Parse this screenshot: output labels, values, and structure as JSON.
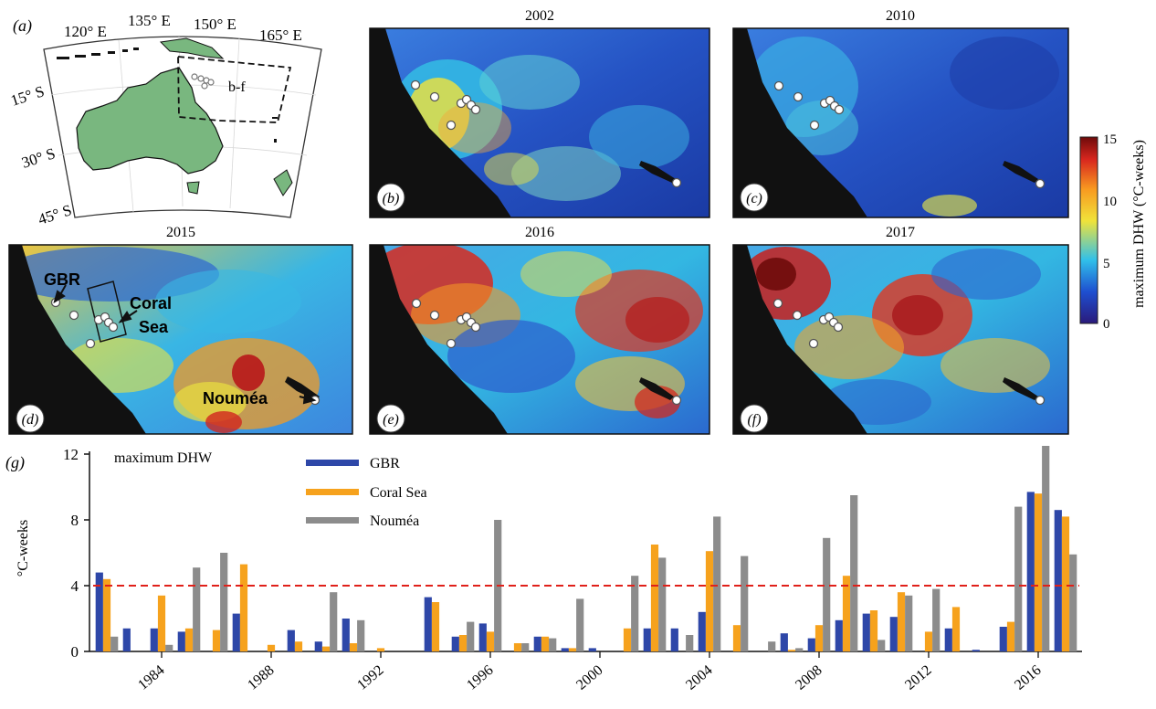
{
  "figure": {
    "panel_a": {
      "label": "(a)",
      "lon_ticks": [
        "120° E",
        "135° E",
        "150° E",
        "165° E"
      ],
      "lat_ticks": [
        "15° S",
        "30° S",
        "45° S"
      ],
      "region_label": "b-f"
    },
    "maps": [
      {
        "year": "2002",
        "label": "(b)"
      },
      {
        "year": "2010",
        "label": "(c)"
      },
      {
        "year": "2015",
        "label": "(d)"
      },
      {
        "year": "2016",
        "label": "(e)"
      },
      {
        "year": "2017",
        "label": "(f)"
      }
    ],
    "annotations": {
      "gbr": "GBR",
      "coral_sea_1": "Coral",
      "coral_sea_2": "Sea",
      "noumea": "Nouméa"
    },
    "colorbar": {
      "title": "maximum DHW (°C-weeks)",
      "ticks": [
        "15",
        "10",
        "5",
        "0"
      ],
      "colors": [
        "#2a1a7a",
        "#1e4fd0",
        "#31c0ea",
        "#f0e33a",
        "#f89a20",
        "#d8261e",
        "#6e0b0b"
      ]
    },
    "colors": {
      "land": "#111111",
      "gbr": "#2e47a8",
      "coral_sea": "#f6a21d",
      "noumea": "#8c8c8c",
      "threshold": "#e0201a"
    }
  },
  "chart_data": {
    "type": "bar",
    "panel_label": "(g)",
    "title": "maximum DHW",
    "xlabel": "",
    "ylabel": "°C-weeks",
    "ylim": [
      0,
      12
    ],
    "yticks": [
      "0",
      "4",
      "8",
      "12"
    ],
    "xtick_labels": [
      "1984",
      "1988",
      "1992",
      "1996",
      "2000",
      "2004",
      "2008",
      "2012",
      "2016"
    ],
    "threshold": 4,
    "categories": [
      "1982",
      "1983",
      "1984",
      "1985",
      "1986",
      "1987",
      "1988",
      "1989",
      "1990",
      "1991",
      "1992",
      "1993",
      "1994",
      "1995",
      "1996",
      "1997",
      "1998",
      "1999",
      "2000",
      "2001",
      "2002",
      "2003",
      "2004",
      "2005",
      "2006",
      "2007",
      "2008",
      "2009",
      "2010",
      "2011",
      "2012",
      "2013",
      "2014",
      "2015",
      "2016",
      "2017"
    ],
    "series": [
      {
        "name": "GBR",
        "values": [
          4.8,
          1.4,
          1.4,
          1.2,
          0,
          2.3,
          0,
          1.3,
          0.6,
          2.0,
          0,
          0,
          3.3,
          0.9,
          1.7,
          0,
          0.9,
          0.2,
          0.2,
          0,
          1.4,
          1.4,
          2.4,
          0,
          0,
          1.1,
          0.8,
          1.9,
          2.3,
          2.1,
          0,
          1.4,
          0.1,
          1.5,
          9.7,
          8.6
        ]
      },
      {
        "name": "Coral Sea",
        "values": [
          4.4,
          0,
          3.4,
          1.4,
          1.3,
          5.3,
          0.4,
          0.6,
          0.3,
          0.5,
          0.2,
          0,
          3.0,
          1.0,
          1.2,
          0.5,
          0.9,
          0.2,
          0,
          1.4,
          6.5,
          0,
          6.1,
          1.6,
          0,
          0.1,
          1.6,
          4.6,
          2.5,
          3.6,
          1.2,
          2.7,
          0,
          1.8,
          9.6,
          8.2
        ]
      },
      {
        "name": "Nouméa",
        "values": [
          0.9,
          0,
          0.4,
          5.1,
          6.0,
          0,
          0,
          0,
          3.6,
          1.9,
          0,
          0,
          0,
          1.8,
          8.0,
          0.5,
          0.8,
          3.2,
          0,
          4.6,
          5.7,
          1.0,
          8.2,
          5.8,
          0.6,
          0.2,
          6.9,
          9.5,
          0.7,
          3.4,
          3.8,
          0,
          0,
          8.8,
          12.5,
          5.9
        ]
      }
    ]
  }
}
